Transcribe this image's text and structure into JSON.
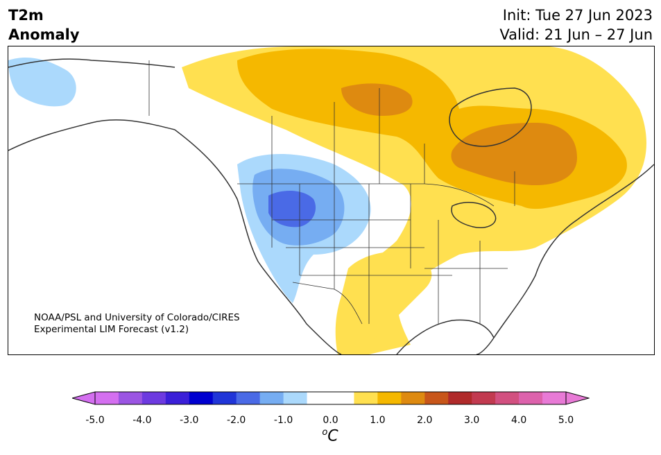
{
  "header": {
    "title_line1": "T2m",
    "title_line2": "Anomaly",
    "init_label": "Init: Tue 27 Jun 2023",
    "valid_label": "Valid: 21 Jun – 27 Jun"
  },
  "credit": {
    "line1": "NOAA/PSL and University of Colorado/CIRES",
    "line2": "Experimental LIM Forecast (v1.2)"
  },
  "colorbar": {
    "unit_base": "C",
    "unit_sup": "o",
    "ticks": [
      "-5.0",
      "-4.0",
      "-3.0",
      "-2.0",
      "-1.0",
      "0.0",
      "1.0",
      "2.0",
      "3.0",
      "4.0",
      "5.0"
    ],
    "bin_colors": [
      "#d46ff0",
      "#9b55e3",
      "#6d3ae0",
      "#3b1fd8",
      "#0000d0",
      "#2035d8",
      "#4a6ae6",
      "#76adf2",
      "#abd9fc",
      "#ffffff",
      "#ffffff",
      "#ffe050",
      "#f5b800",
      "#de8a10",
      "#c8561a",
      "#b02a2a",
      "#c23a50",
      "#d25080",
      "#dd62ac",
      "#e87ad6"
    ],
    "under_color": "#d46ff0",
    "over_color": "#e87ad6"
  },
  "map": {
    "anomaly_colors": {
      "weak_cool": "#abd9fc",
      "moderate_cool": "#76adf2",
      "strong_cool": "#4a6ae6",
      "weak_warm": "#ffe050",
      "moderate_warm": "#f5b800",
      "strong_warm": "#de8a10"
    },
    "line_color": "#333333"
  }
}
